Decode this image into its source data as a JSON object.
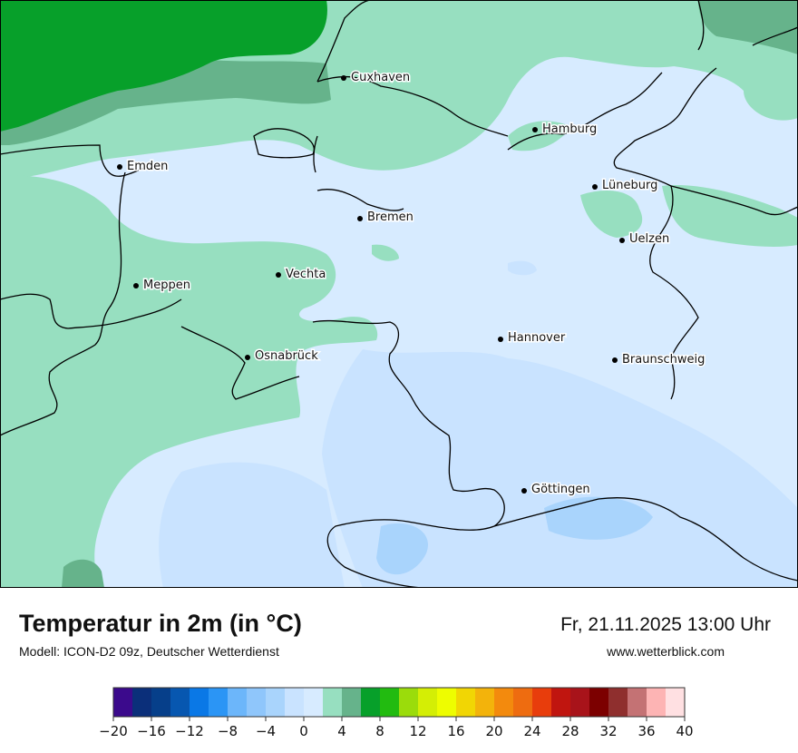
{
  "header": {
    "title": "Temperatur in 2m (in °C)",
    "model": "Modell: ICON-D2 09z, Deutscher Wetterdienst",
    "datetime": "Fr, 21.11.2025 13:00 Uhr",
    "website": "www.wetterblick.com"
  },
  "colors": {
    "range_-2_0": "#c9e3ff",
    "range_0_2": "#d7ebff",
    "range_2_4": "#97dfc0",
    "range_4_6": "#66b38b",
    "range_6_8": "#07a02a",
    "border": "#000000"
  },
  "map": {
    "cities": [
      {
        "name": "Cuxhaven"
      },
      {
        "name": "Hamburg"
      },
      {
        "name": "Emden"
      },
      {
        "name": "Lüneburg"
      },
      {
        "name": "Bremen"
      },
      {
        "name": "Uelzen"
      },
      {
        "name": "Vechta"
      },
      {
        "name": "Meppen"
      },
      {
        "name": "Hannover"
      },
      {
        "name": "Osnabrück"
      },
      {
        "name": "Braunschweig"
      },
      {
        "name": "Göttingen"
      }
    ]
  },
  "legend": {
    "unit": "°C",
    "min": -20,
    "max": 40,
    "step": 2,
    "ticks": [
      "−20",
      "−16",
      "−12",
      "−8",
      "−4",
      "0",
      "4",
      "8",
      "12",
      "16",
      "20",
      "24",
      "28",
      "32",
      "36",
      "40"
    ],
    "colors": [
      "#3b0a8c",
      "#0b2f7a",
      "#063f8a",
      "#0757b0",
      "#0a78e6",
      "#2b95f5",
      "#6cb6fa",
      "#8fc6fb",
      "#a9d4fc",
      "#c9e3ff",
      "#d7ebff",
      "#97dfc0",
      "#66b38b",
      "#07a02a",
      "#22bb10",
      "#9bdc0b",
      "#d4ee05",
      "#eefd00",
      "#f1d604",
      "#f3b30b",
      "#f38a0d",
      "#ee6c10",
      "#e83d0c",
      "#c0150f",
      "#a8131a",
      "#7c0000",
      "#8f2f2e",
      "#c47274",
      "#fdb4b4",
      "#ffe0e2"
    ]
  }
}
